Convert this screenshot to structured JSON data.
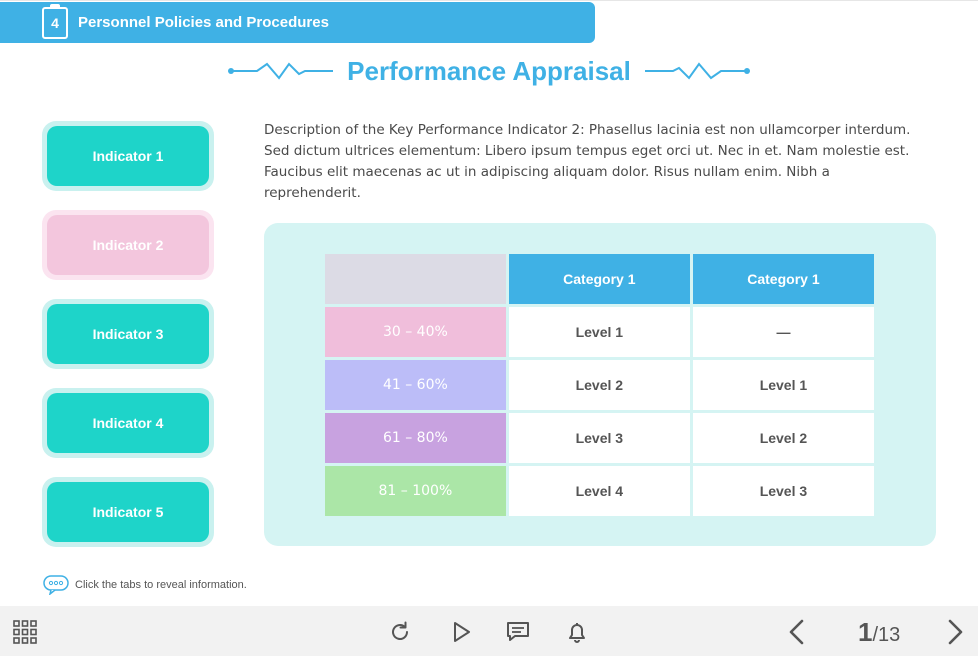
{
  "header": {
    "chapter_number": "4",
    "chapter_title": "Personnel Policies and Procedures"
  },
  "page_title": "Performance Appraisal",
  "tabs": [
    {
      "label": "Indicator 1",
      "state": "default"
    },
    {
      "label": "Indicator 2",
      "state": "active"
    },
    {
      "label": "Indicator 3",
      "state": "default"
    },
    {
      "label": "Indicator 4",
      "state": "default"
    },
    {
      "label": "Indicator 5",
      "state": "default"
    }
  ],
  "description": "Description of the Key Performance Indicator 2: Phasellus lacinia est non ullamcorper interdum. Sed dictum ultrices elementum: Libero ipsum tempus eget orci ut. Nec in et. Nam molestie est. Faucibus elit maecenas ac ut in adipiscing aliquam dolor. Risus nullam enim. Nibh a reprehenderit.",
  "table": {
    "headers": [
      "",
      "Category 1",
      "Category 1"
    ],
    "rows": [
      {
        "range": "30 – 40%",
        "color": "#f0bedb",
        "values": [
          "Level 1",
          "—"
        ]
      },
      {
        "range": "41 – 60%",
        "color": "#bcbdf8",
        "values": [
          "Level 2",
          "Level 1"
        ]
      },
      {
        "range": "61 – 80%",
        "color": "#c8a2e0",
        "values": [
          "Level 3",
          "Level 2"
        ]
      },
      {
        "range": "81 – 100%",
        "color": "#abe6a7",
        "values": [
          "Level 4",
          "Level 3"
        ]
      }
    ]
  },
  "hint": "Click the tabs to reveal information.",
  "navigation": {
    "current_page": "1",
    "total_pages": "/13",
    "icons": [
      "grid-menu-icon",
      "replay-icon",
      "play-icon",
      "comments-icon",
      "bell-icon",
      "prev-icon",
      "next-icon"
    ]
  },
  "colors": {
    "accent": "#3fb1e5",
    "tab_teal": "#1ed4c9",
    "tab_active": "#f3c6dd",
    "panel": "#d5f4f3"
  }
}
